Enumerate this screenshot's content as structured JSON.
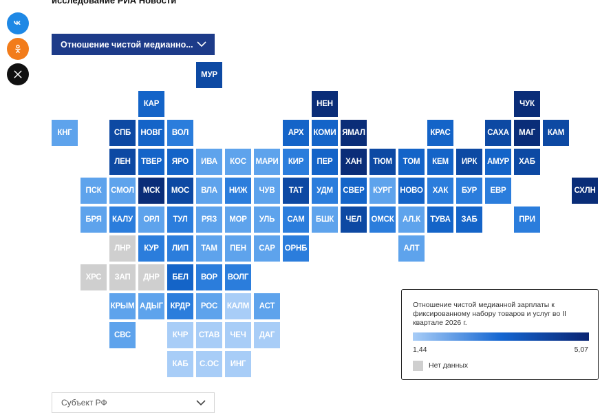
{
  "header": {
    "title": "исследование РИА Новости"
  },
  "social": [
    {
      "name": "vk-icon",
      "label": "VK",
      "color": "#1e88e5"
    },
    {
      "name": "odnoklassniki-icon",
      "label": "OK",
      "color": "#f27c1b"
    },
    {
      "name": "x-icon",
      "label": "X",
      "color": "#111111"
    }
  ],
  "indicator_select": {
    "value": "Отношение чистой медианно..."
  },
  "region_select": {
    "value": "Субъект РФ"
  },
  "legend": {
    "title": "Отношение чистой медианной зарплаты к фиксированному набору товаров и услуг во II квартале 2026 г.",
    "min": "1,44",
    "max": "5,07",
    "no_data": "Нет данных"
  },
  "colors": {
    "no_data": "#cfcfcf",
    "scale": [
      "#a8cdf7",
      "#5ea3ec",
      "#2b7ddc",
      "#1464c8",
      "#0d49a3",
      "#0a2d78"
    ]
  },
  "chart_data": {
    "type": "heatmap",
    "value_range": [
      1.44,
      5.07
    ],
    "regions": [
      {
        "label": "МУР",
        "col": 5,
        "row": 0,
        "level": 4
      },
      {
        "label": "КАР",
        "col": 3,
        "row": 1,
        "level": 3
      },
      {
        "label": "НЕН",
        "col": 9,
        "row": 1,
        "level": 5
      },
      {
        "label": "ЧУК",
        "col": 16,
        "row": 1,
        "level": 5
      },
      {
        "label": "КНГ",
        "col": 0,
        "row": 2,
        "level": 1
      },
      {
        "label": "СПБ",
        "col": 2,
        "row": 2,
        "level": 4
      },
      {
        "label": "НОВГ",
        "col": 3,
        "row": 2,
        "level": 3
      },
      {
        "label": "ВОЛ",
        "col": 4,
        "row": 2,
        "level": 2
      },
      {
        "label": "АРХ",
        "col": 8,
        "row": 2,
        "level": 3
      },
      {
        "label": "КОМИ",
        "col": 9,
        "row": 2,
        "level": 3
      },
      {
        "label": "ЯМАЛ",
        "col": 10,
        "row": 2,
        "level": 5
      },
      {
        "label": "КРАС",
        "col": 13,
        "row": 2,
        "level": 3
      },
      {
        "label": "САХА",
        "col": 15,
        "row": 2,
        "level": 4
      },
      {
        "label": "МАГ",
        "col": 16,
        "row": 2,
        "level": 5
      },
      {
        "label": "КАМ",
        "col": 17,
        "row": 2,
        "level": 4
      },
      {
        "label": "ЛЕН",
        "col": 2,
        "row": 3,
        "level": 4
      },
      {
        "label": "ТВЕР",
        "col": 3,
        "row": 3,
        "level": 3
      },
      {
        "label": "ЯРО",
        "col": 4,
        "row": 3,
        "level": 3
      },
      {
        "label": "ИВА",
        "col": 5,
        "row": 3,
        "level": 1
      },
      {
        "label": "КОС",
        "col": 6,
        "row": 3,
        "level": 1
      },
      {
        "label": "МАРИ",
        "col": 7,
        "row": 3,
        "level": 1
      },
      {
        "label": "КИР",
        "col": 8,
        "row": 3,
        "level": 2
      },
      {
        "label": "ПЕР",
        "col": 9,
        "row": 3,
        "level": 3
      },
      {
        "label": "ХАН",
        "col": 10,
        "row": 3,
        "level": 5
      },
      {
        "label": "ТЮМ",
        "col": 11,
        "row": 3,
        "level": 4
      },
      {
        "label": "ТОМ",
        "col": 12,
        "row": 3,
        "level": 3
      },
      {
        "label": "КЕМ",
        "col": 13,
        "row": 3,
        "level": 3
      },
      {
        "label": "ИРК",
        "col": 14,
        "row": 3,
        "level": 4
      },
      {
        "label": "АМУР",
        "col": 15,
        "row": 3,
        "level": 3
      },
      {
        "label": "ХАБ",
        "col": 16,
        "row": 3,
        "level": 4
      },
      {
        "label": "ПСК",
        "col": 1,
        "row": 4,
        "level": 1
      },
      {
        "label": "СМОЛ",
        "col": 2,
        "row": 4,
        "level": 1
      },
      {
        "label": "МСК",
        "col": 3,
        "row": 4,
        "level": 5
      },
      {
        "label": "МОС",
        "col": 4,
        "row": 4,
        "level": 4
      },
      {
        "label": "ВЛА",
        "col": 5,
        "row": 4,
        "level": 1
      },
      {
        "label": "НИЖ",
        "col": 6,
        "row": 4,
        "level": 2
      },
      {
        "label": "ЧУВ",
        "col": 7,
        "row": 4,
        "level": 1
      },
      {
        "label": "ТАТ",
        "col": 8,
        "row": 4,
        "level": 4
      },
      {
        "label": "УДМ",
        "col": 9,
        "row": 4,
        "level": 2
      },
      {
        "label": "СВЕР",
        "col": 10,
        "row": 4,
        "level": 3
      },
      {
        "label": "КУРГ",
        "col": 11,
        "row": 4,
        "level": 1
      },
      {
        "label": "НОВО",
        "col": 12,
        "row": 4,
        "level": 3
      },
      {
        "label": "ХАК",
        "col": 13,
        "row": 4,
        "level": 2
      },
      {
        "label": "БУР",
        "col": 14,
        "row": 4,
        "level": 2
      },
      {
        "label": "ЕВР",
        "col": 15,
        "row": 4,
        "level": 2
      },
      {
        "label": "СХЛН",
        "col": 18,
        "row": 4,
        "level": 5
      },
      {
        "label": "БРЯ",
        "col": 1,
        "row": 5,
        "level": 1
      },
      {
        "label": "КАЛУ",
        "col": 2,
        "row": 5,
        "level": 2
      },
      {
        "label": "ОРЛ",
        "col": 3,
        "row": 5,
        "level": 1
      },
      {
        "label": "ТУЛ",
        "col": 4,
        "row": 5,
        "level": 2
      },
      {
        "label": "РЯЗ",
        "col": 5,
        "row": 5,
        "level": 1
      },
      {
        "label": "МОР",
        "col": 6,
        "row": 5,
        "level": 1
      },
      {
        "label": "УЛЬ",
        "col": 7,
        "row": 5,
        "level": 1
      },
      {
        "label": "САМ",
        "col": 8,
        "row": 5,
        "level": 2
      },
      {
        "label": "БШК",
        "col": 9,
        "row": 5,
        "level": 1
      },
      {
        "label": "ЧЕЛ",
        "col": 10,
        "row": 5,
        "level": 4
      },
      {
        "label": "ОМСК",
        "col": 11,
        "row": 5,
        "level": 2
      },
      {
        "label": "АЛ.К",
        "col": 12,
        "row": 5,
        "level": 1
      },
      {
        "label": "ТУВА",
        "col": 13,
        "row": 5,
        "level": 3
      },
      {
        "label": "ЗАБ",
        "col": 14,
        "row": 5,
        "level": 3
      },
      {
        "label": "ПРИ",
        "col": 16,
        "row": 5,
        "level": 2
      },
      {
        "label": "ЛНР",
        "col": 2,
        "row": 6,
        "level": -1
      },
      {
        "label": "КУР",
        "col": 3,
        "row": 6,
        "level": 2
      },
      {
        "label": "ЛИП",
        "col": 4,
        "row": 6,
        "level": 2
      },
      {
        "label": "ТАМ",
        "col": 5,
        "row": 6,
        "level": 1
      },
      {
        "label": "ПЕН",
        "col": 6,
        "row": 6,
        "level": 1
      },
      {
        "label": "САР",
        "col": 7,
        "row": 6,
        "level": 1
      },
      {
        "label": "ОРНБ",
        "col": 8,
        "row": 6,
        "level": 2
      },
      {
        "label": "АЛТ",
        "col": 12,
        "row": 6,
        "level": 1
      },
      {
        "label": "ХРС",
        "col": 1,
        "row": 7,
        "level": -1
      },
      {
        "label": "ЗАП",
        "col": 2,
        "row": 7,
        "level": -1
      },
      {
        "label": "ДНР",
        "col": 3,
        "row": 7,
        "level": -1
      },
      {
        "label": "БЕЛ",
        "col": 4,
        "row": 7,
        "level": 3
      },
      {
        "label": "ВОР",
        "col": 5,
        "row": 7,
        "level": 2
      },
      {
        "label": "ВОЛГ",
        "col": 6,
        "row": 7,
        "level": 2
      },
      {
        "label": "КРЫМ",
        "col": 2,
        "row": 8,
        "level": 1
      },
      {
        "label": "АДЫГ",
        "col": 3,
        "row": 8,
        "level": 1
      },
      {
        "label": "КРДР",
        "col": 4,
        "row": 8,
        "level": 2
      },
      {
        "label": "РОС",
        "col": 5,
        "row": 8,
        "level": 1
      },
      {
        "label": "КАЛМ",
        "col": 6,
        "row": 8,
        "level": 0
      },
      {
        "label": "АСТ",
        "col": 7,
        "row": 8,
        "level": 1
      },
      {
        "label": "СВС",
        "col": 2,
        "row": 9,
        "level": 1
      },
      {
        "label": "КЧР",
        "col": 4,
        "row": 9,
        "level": 0
      },
      {
        "label": "СТАВ",
        "col": 5,
        "row": 9,
        "level": 0
      },
      {
        "label": "ЧЕЧ",
        "col": 6,
        "row": 9,
        "level": 0
      },
      {
        "label": "ДАГ",
        "col": 7,
        "row": 9,
        "level": 0
      },
      {
        "label": "КАБ",
        "col": 4,
        "row": 10,
        "level": 0
      },
      {
        "label": "С.ОС",
        "col": 5,
        "row": 10,
        "level": 0
      },
      {
        "label": "ИНГ",
        "col": 6,
        "row": 10,
        "level": 0
      }
    ]
  }
}
